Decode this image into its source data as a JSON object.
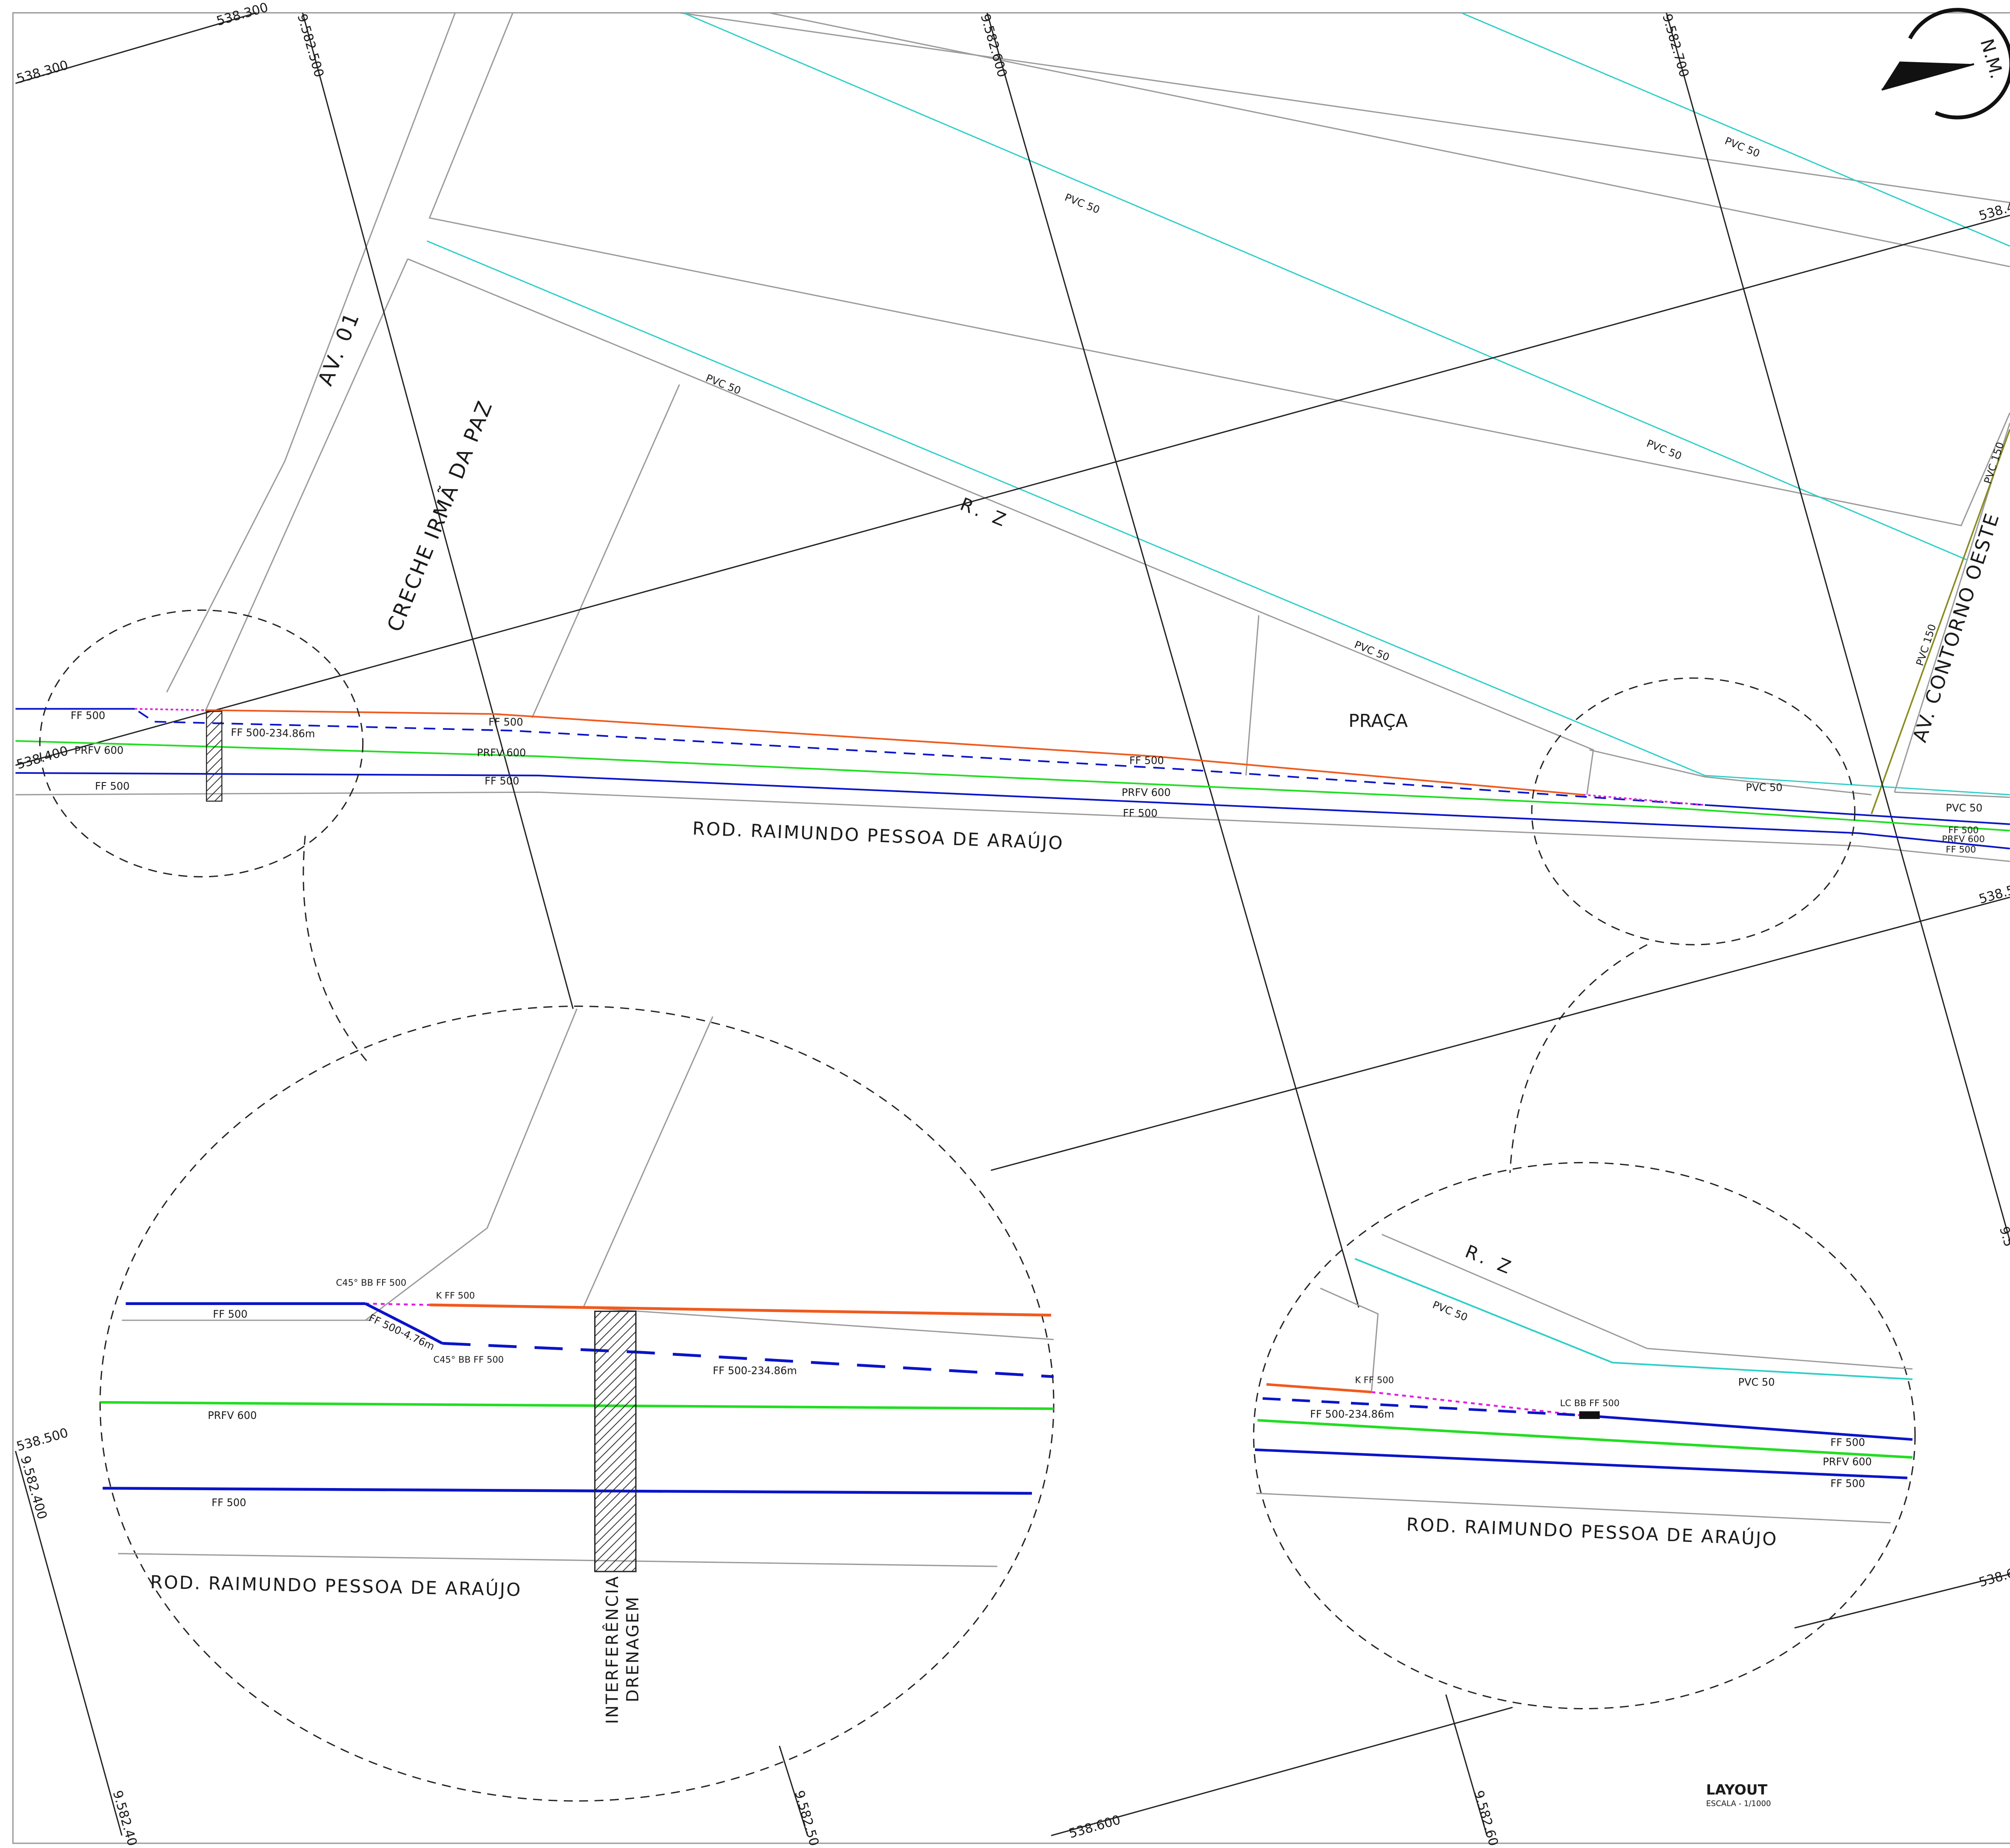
{
  "drawing": {
    "title": "LAYOUT",
    "scale": "ESCALA - 1/1000",
    "north_label": "N.M.",
    "north_icon": "north-arrow-icon"
  },
  "colors": {
    "ff_existing": "#0a14c8",
    "prfv": "#22dd22",
    "orange_line": "#f05a1e",
    "pvc": "#2ecfc8",
    "magenta_dotted": "#e020e0",
    "street_edge": "#9a9a9a",
    "grid": "#222222"
  },
  "grid_labels": {
    "n500": "9.582.500",
    "n600": "9.582.600",
    "n700": "9.582.700",
    "n400": "9.582.400",
    "e300": "538.300",
    "e400": "538.400",
    "e500": "538.500",
    "e600": "538.600",
    "e400_r": "538.4",
    "e500_r": "538.5",
    "e600_r": "538.6",
    "n_r": "9.5"
  },
  "streets": {
    "av01": "AV. 01",
    "creche": "CRECHE IRMÃ DA PAZ",
    "rz": "R. Z",
    "praca": "PRAÇA",
    "rodovia": "ROD. RAIMUNDO PESSOA DE ARAÚJO",
    "contorno": "AV. CONTORNO OESTE"
  },
  "pipes": {
    "ff500": "FF 500",
    "prfv600": "PRFV 600",
    "pvc50": "PVC 50",
    "pvc150": "PVC 150",
    "ff500_new": "FF 500-234.86m",
    "ff500_short": "FF 500-4.76m",
    "c45_top": "C45° BB FF 500",
    "c45_bottom": "C45° BB FF 500",
    "k_ff500": "K FF 500",
    "lc_bb": "LC BB FF 500"
  },
  "interference": {
    "line1": "INTERFERÊNCIA",
    "line2": "DRENAGEM"
  }
}
